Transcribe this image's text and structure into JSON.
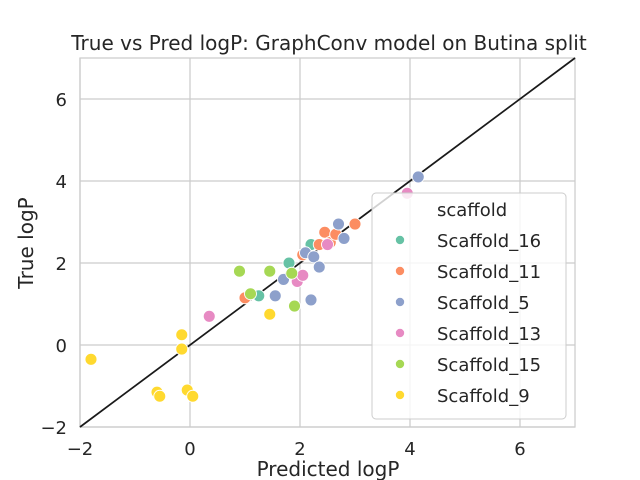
{
  "chart_data": {
    "type": "scatter",
    "title": "True vs Pred logP: GraphConv model on Butina split",
    "xlabel": "Predicted logP",
    "ylabel": "True logP",
    "xlim": [
      -2,
      7
    ],
    "ylim": [
      -2,
      7
    ],
    "xticks": [
      -2,
      0,
      2,
      4,
      6
    ],
    "yticks": [
      -2,
      0,
      2,
      4,
      6
    ],
    "grid": true,
    "reference_line": {
      "from": [
        -2,
        -2
      ],
      "to": [
        7,
        7
      ],
      "color": "#1a1a1a"
    },
    "legend": {
      "title": "scaffold",
      "position": "right"
    },
    "series": [
      {
        "name": "Scaffold_16",
        "color": "#66c2a5",
        "points": [
          [
            2.2,
            2.45
          ],
          [
            1.25,
            1.2
          ],
          [
            1.8,
            2.0
          ]
        ]
      },
      {
        "name": "Scaffold_11",
        "color": "#fc8d62",
        "points": [
          [
            1.0,
            1.15
          ],
          [
            2.05,
            2.2
          ],
          [
            2.35,
            2.45
          ],
          [
            2.45,
            2.75
          ],
          [
            2.55,
            2.5
          ],
          [
            2.65,
            2.7
          ],
          [
            3.0,
            2.95
          ]
        ]
      },
      {
        "name": "Scaffold_5",
        "color": "#8da0cb",
        "points": [
          [
            1.55,
            1.2
          ],
          [
            1.7,
            1.6
          ],
          [
            2.1,
            2.25
          ],
          [
            2.2,
            1.1
          ],
          [
            2.25,
            2.15
          ],
          [
            2.35,
            1.9
          ],
          [
            2.7,
            2.95
          ],
          [
            2.8,
            2.6
          ],
          [
            4.15,
            4.1
          ]
        ]
      },
      {
        "name": "Scaffold_13",
        "color": "#e78ac3",
        "points": [
          [
            0.35,
            0.7
          ],
          [
            1.95,
            1.55
          ],
          [
            2.05,
            1.7
          ],
          [
            2.5,
            2.45
          ],
          [
            3.95,
            3.7
          ]
        ]
      },
      {
        "name": "Scaffold_15",
        "color": "#a6d854",
        "points": [
          [
            0.9,
            1.8
          ],
          [
            1.1,
            1.25
          ],
          [
            1.45,
            1.8
          ],
          [
            1.85,
            1.75
          ],
          [
            1.9,
            0.95
          ]
        ]
      },
      {
        "name": "Scaffold_9",
        "color": "#ffd92f",
        "points": [
          [
            -1.8,
            -0.35
          ],
          [
            -0.6,
            -1.15
          ],
          [
            -0.55,
            -1.25
          ],
          [
            -0.15,
            0.25
          ],
          [
            -0.15,
            -0.1
          ],
          [
            -0.05,
            -1.1
          ],
          [
            0.05,
            -1.25
          ],
          [
            1.45,
            0.75
          ]
        ]
      }
    ]
  }
}
